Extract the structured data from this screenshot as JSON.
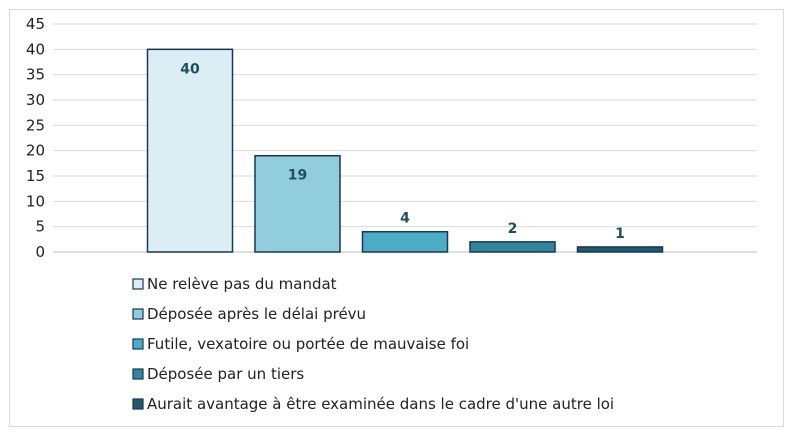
{
  "chart_data": {
    "type": "bar",
    "categories": [
      "Ne relève pas du mandat",
      "Déposée après le délai prévu",
      "Futile, vexatoire ou portée de mauvaise foi",
      "Déposée par un tiers",
      "Aurait avantage à être examinée dans le cadre d'une autre loi"
    ],
    "values": [
      40,
      19,
      4,
      2,
      1
    ],
    "data_labels": [
      "40",
      "19",
      "4",
      "2",
      "1"
    ],
    "colors": [
      "#daeef3",
      "#92cddc",
      "#4bacc6",
      "#31859c",
      "#215967"
    ],
    "label_colors": [
      "#1f4e5f",
      "#1f4e5f",
      "#1f4e5f",
      "#1f4e5f",
      "#1f4e5f"
    ],
    "ylim": [
      0,
      45
    ],
    "yticks": [
      "0",
      "5",
      "10",
      "15",
      "20",
      "25",
      "30",
      "35",
      "40",
      "45"
    ],
    "grid": true,
    "legend_position": "bottom",
    "title": "",
    "xlabel": "",
    "ylabel": ""
  }
}
